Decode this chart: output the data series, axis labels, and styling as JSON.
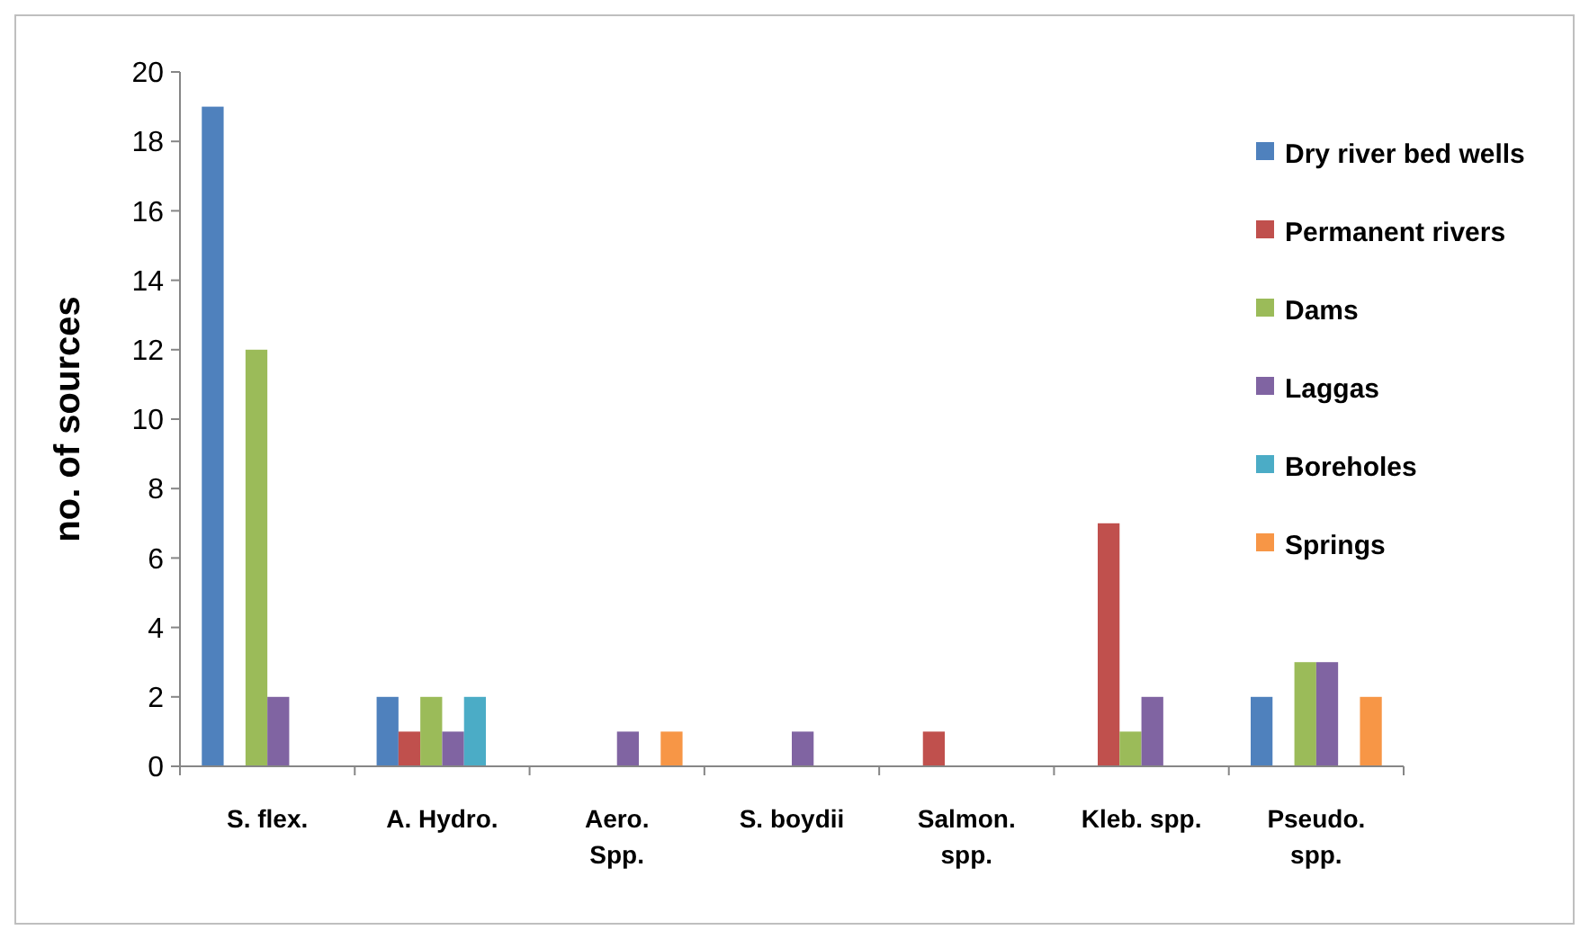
{
  "chart_data": {
    "type": "bar",
    "ylabel": "no. of sources",
    "categories": [
      "S. flex.",
      "A. Hydro.",
      "Aero.\nSpp.",
      "S. boydii",
      "Salmon.\nspp.",
      "Kleb. spp.",
      "Pseudo.\nspp."
    ],
    "series": [
      {
        "name": "Dry river bed wells",
        "color": "#4f81bd",
        "values": [
          19,
          2,
          0,
          0,
          0,
          0,
          2
        ]
      },
      {
        "name": "Permanent rivers",
        "color": "#c0504d",
        "values": [
          0,
          1,
          0,
          0,
          1,
          7,
          0
        ]
      },
      {
        "name": "Dams",
        "color": "#9bbb59",
        "values": [
          12,
          2,
          0,
          0,
          0,
          1,
          3
        ]
      },
      {
        "name": "Laggas",
        "color": "#8064a2",
        "values": [
          2,
          1,
          1,
          1,
          0,
          2,
          3
        ]
      },
      {
        "name": "Boreholes",
        "color": "#4bacc6",
        "values": [
          0,
          2,
          0,
          0,
          0,
          0,
          0
        ]
      },
      {
        "name": "Springs",
        "color": "#f79646",
        "values": [
          0,
          0,
          1,
          0,
          0,
          0,
          2
        ]
      }
    ],
    "ylim": [
      0,
      20
    ],
    "yticks": [
      0,
      2,
      4,
      6,
      8,
      10,
      12,
      14,
      16,
      18,
      20
    ],
    "grid": false,
    "legend": "right"
  }
}
